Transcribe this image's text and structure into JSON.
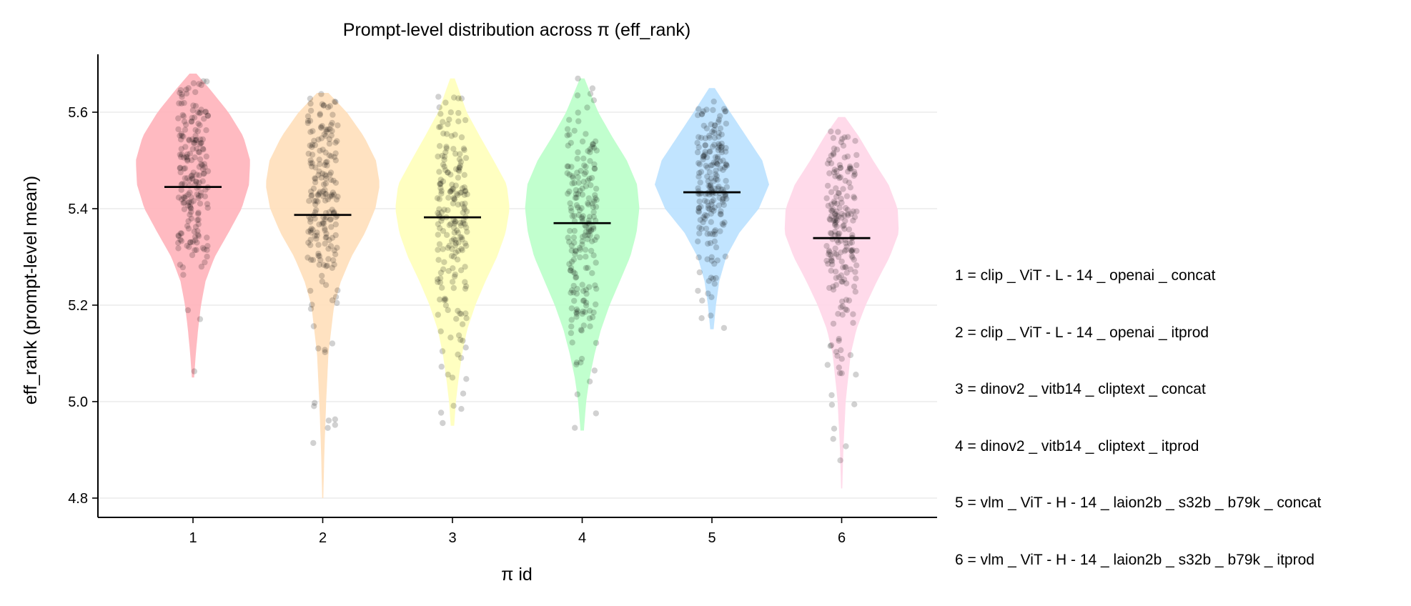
{
  "chart_data": {
    "type": "violin",
    "title": "Prompt-level distribution across π (eff_rank)",
    "xlabel": "π id",
    "ylabel": "eff_rank (prompt-level mean)",
    "ylim": [
      4.76,
      5.72
    ],
    "yticks": [
      4.8,
      5.0,
      5.2,
      5.4,
      5.6
    ],
    "ytick_labels": [
      "4.8",
      "5.0",
      "5.2",
      "5.4",
      "5.6"
    ],
    "grid": "horizontal",
    "categories": [
      "1",
      "2",
      "3",
      "4",
      "5",
      "6"
    ],
    "series": [
      {
        "name": "clip _ ViT - L - 14 _ openai _ concat",
        "color": "#ffb3ba",
        "min": 5.05,
        "max": 5.68,
        "mean": 5.445,
        "profile": [
          [
            5.05,
            0.02
          ],
          [
            5.1,
            0.05
          ],
          [
            5.15,
            0.09
          ],
          [
            5.2,
            0.14
          ],
          [
            5.25,
            0.22
          ],
          [
            5.3,
            0.38
          ],
          [
            5.35,
            0.62
          ],
          [
            5.4,
            0.85
          ],
          [
            5.45,
            0.98
          ],
          [
            5.5,
            1.0
          ],
          [
            5.55,
            0.88
          ],
          [
            5.6,
            0.62
          ],
          [
            5.65,
            0.28
          ],
          [
            5.68,
            0.06
          ]
        ]
      },
      {
        "name": "clip _ ViT - L - 14 _ openai _ itprod",
        "color": "#ffdfba",
        "min": 4.8,
        "max": 5.64,
        "mean": 5.387,
        "profile": [
          [
            4.8,
            0.01
          ],
          [
            4.9,
            0.03
          ],
          [
            5.0,
            0.06
          ],
          [
            5.1,
            0.1
          ],
          [
            5.2,
            0.2
          ],
          [
            5.25,
            0.32
          ],
          [
            5.3,
            0.5
          ],
          [
            5.35,
            0.74
          ],
          [
            5.4,
            0.92
          ],
          [
            5.45,
            1.0
          ],
          [
            5.5,
            0.93
          ],
          [
            5.55,
            0.72
          ],
          [
            5.6,
            0.42
          ],
          [
            5.64,
            0.1
          ]
        ]
      },
      {
        "name": "dinov2 _ vitb14 _ cliptext _ concat",
        "color": "#ffffba",
        "min": 4.95,
        "max": 5.67,
        "mean": 5.382,
        "profile": [
          [
            4.95,
            0.03
          ],
          [
            5.0,
            0.06
          ],
          [
            5.05,
            0.11
          ],
          [
            5.1,
            0.17
          ],
          [
            5.15,
            0.26
          ],
          [
            5.2,
            0.4
          ],
          [
            5.25,
            0.58
          ],
          [
            5.3,
            0.78
          ],
          [
            5.35,
            0.93
          ],
          [
            5.4,
            1.0
          ],
          [
            5.45,
            0.95
          ],
          [
            5.5,
            0.72
          ],
          [
            5.55,
            0.48
          ],
          [
            5.6,
            0.25
          ],
          [
            5.67,
            0.04
          ]
        ]
      },
      {
        "name": "dinov2 _ vitb14 _ cliptext _ itprod",
        "color": "#baffc9",
        "min": 4.94,
        "max": 5.67,
        "mean": 5.37,
        "profile": [
          [
            4.94,
            0.03
          ],
          [
            5.0,
            0.07
          ],
          [
            5.05,
            0.13
          ],
          [
            5.1,
            0.22
          ],
          [
            5.15,
            0.33
          ],
          [
            5.2,
            0.48
          ],
          [
            5.25,
            0.66
          ],
          [
            5.3,
            0.84
          ],
          [
            5.35,
            0.95
          ],
          [
            5.4,
            1.0
          ],
          [
            5.45,
            0.96
          ],
          [
            5.5,
            0.78
          ],
          [
            5.55,
            0.52
          ],
          [
            5.6,
            0.28
          ],
          [
            5.67,
            0.04
          ]
        ]
      },
      {
        "name": "vlm _ ViT - H - 14 _ laion2b _ s32b _ b79k _ concat",
        "color": "#bae1ff",
        "min": 5.15,
        "max": 5.65,
        "mean": 5.434,
        "profile": [
          [
            5.15,
            0.03
          ],
          [
            5.2,
            0.07
          ],
          [
            5.25,
            0.13
          ],
          [
            5.3,
            0.25
          ],
          [
            5.35,
            0.48
          ],
          [
            5.4,
            0.82
          ],
          [
            5.45,
            1.0
          ],
          [
            5.5,
            0.88
          ],
          [
            5.55,
            0.6
          ],
          [
            5.6,
            0.32
          ],
          [
            5.65,
            0.05
          ]
        ]
      },
      {
        "name": "vlm _ ViT - H - 14 _ laion2b _ s32b _ b79k _ itprod",
        "color": "#ffd6e8",
        "min": 4.82,
        "max": 5.59,
        "mean": 5.339,
        "profile": [
          [
            4.82,
            0.01
          ],
          [
            4.9,
            0.03
          ],
          [
            5.0,
            0.07
          ],
          [
            5.1,
            0.16
          ],
          [
            5.15,
            0.26
          ],
          [
            5.2,
            0.42
          ],
          [
            5.25,
            0.62
          ],
          [
            5.3,
            0.84
          ],
          [
            5.35,
            1.0
          ],
          [
            5.4,
            0.98
          ],
          [
            5.45,
            0.82
          ],
          [
            5.5,
            0.55
          ],
          [
            5.55,
            0.3
          ],
          [
            5.59,
            0.06
          ]
        ]
      }
    ],
    "legend": [
      "1 = clip _ ViT - L - 14 _ openai _ concat",
      "2 = clip _ ViT - L - 14 _ openai _ itprod",
      "3 = dinov2 _ vitb14 _ cliptext _ concat",
      "4 = dinov2 _ vitb14 _ cliptext _ itprod",
      "5 = vlm _ ViT - H - 14 _ laion2b _ s32b _ b79k _ concat",
      "6 = vlm _ ViT - H - 14 _ laion2b _ s32b _ b79k _ itprod"
    ],
    "points_per_group": 200
  }
}
